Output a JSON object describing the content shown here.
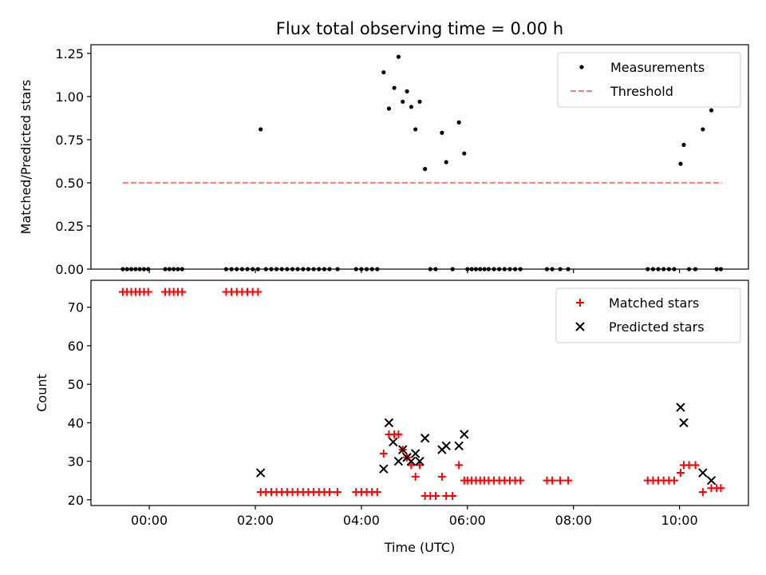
{
  "chart_data": [
    {
      "type": "scatter",
      "title": "Flux total observing time = 0.00 h",
      "ylabel": "Matched/Predicted stars",
      "xlabel": "",
      "xlim": [
        -1.1,
        11.3
      ],
      "ylim": [
        0,
        1.3
      ],
      "x_ticks": [
        0,
        2,
        4,
        6,
        8,
        10
      ],
      "x_tick_labels": [
        "00:00",
        "02:00",
        "04:00",
        "06:00",
        "08:00",
        "10:00"
      ],
      "y_ticks": [
        0,
        0.25,
        0.5,
        0.75,
        1.0,
        1.25
      ],
      "y_tick_labels": [
        "0.00",
        "0.25",
        "0.50",
        "0.75",
        "1.00",
        "1.25"
      ],
      "show_x_tick_labels": false,
      "grid": false,
      "legend_position": "top-right",
      "series": [
        {
          "name": "Measurements",
          "marker": "dot",
          "color": "#000000",
          "x": [
            -0.5,
            -0.42,
            -0.34,
            -0.26,
            -0.18,
            -0.1,
            -0.02,
            0.3,
            0.38,
            0.46,
            0.54,
            0.62,
            1.45,
            1.55,
            1.65,
            1.75,
            1.85,
            1.95,
            2.05,
            2.1,
            2.2,
            2.3,
            2.4,
            2.5,
            2.6,
            2.7,
            2.8,
            2.9,
            3.0,
            3.1,
            3.2,
            3.3,
            3.4,
            3.55,
            3.9,
            4.0,
            4.1,
            4.2,
            4.3,
            4.42,
            4.52,
            4.62,
            4.7,
            4.78,
            4.86,
            4.94,
            5.02,
            5.1,
            5.2,
            5.3,
            5.4,
            5.52,
            5.6,
            5.72,
            5.84,
            5.94,
            6.0,
            6.08,
            6.16,
            6.24,
            6.32,
            6.4,
            6.5,
            6.6,
            6.7,
            6.8,
            6.9,
            7.0,
            7.5,
            7.6,
            7.75,
            7.9,
            9.4,
            9.5,
            9.6,
            9.7,
            9.8,
            9.9,
            10.02,
            10.08,
            10.18,
            10.3,
            10.44,
            10.6,
            10.7,
            10.78
          ],
          "y": [
            0,
            0,
            0,
            0,
            0,
            0,
            0,
            0,
            0,
            0,
            0,
            0,
            0,
            0,
            0,
            0,
            0,
            0,
            0,
            0.81,
            0,
            0,
            0,
            0,
            0,
            0,
            0,
            0,
            0,
            0,
            0,
            0,
            0,
            0,
            0,
            0,
            0,
            0,
            0,
            1.14,
            0.93,
            1.05,
            1.23,
            0.97,
            1.03,
            0.94,
            0.81,
            0.97,
            0.58,
            0,
            0,
            0.79,
            0.62,
            0,
            0.85,
            0.67,
            0,
            0,
            0,
            0,
            0,
            0,
            0,
            0,
            0,
            0,
            0,
            0,
            0,
            0,
            0,
            0,
            0,
            0,
            0,
            0,
            0,
            0,
            0.61,
            0.72,
            0,
            0,
            0.81,
            0.92,
            0,
            0
          ]
        },
        {
          "name": "Threshold",
          "marker": "dashed-line",
          "color": "#ff7777",
          "x": [
            -0.5,
            10.8
          ],
          "y": [
            0.5,
            0.5
          ]
        }
      ]
    },
    {
      "type": "scatter",
      "title": "",
      "ylabel": "Count",
      "xlabel": "Time (UTC)",
      "xlim": [
        -1.1,
        11.3
      ],
      "ylim": [
        18.5,
        77
      ],
      "x_ticks": [
        0,
        2,
        4,
        6,
        8,
        10
      ],
      "x_tick_labels": [
        "00:00",
        "02:00",
        "04:00",
        "06:00",
        "08:00",
        "10:00"
      ],
      "y_ticks": [
        20,
        30,
        40,
        50,
        60,
        70
      ],
      "y_tick_labels": [
        "20",
        "30",
        "40",
        "50",
        "60",
        "70"
      ],
      "show_x_tick_labels": true,
      "grid": false,
      "legend_position": "top-right",
      "series": [
        {
          "name": "Matched stars",
          "marker": "plus",
          "color": "#ff0000",
          "x": [
            -0.5,
            -0.42,
            -0.34,
            -0.26,
            -0.18,
            -0.1,
            -0.02,
            0.3,
            0.38,
            0.46,
            0.54,
            0.62,
            1.45,
            1.55,
            1.65,
            1.75,
            1.85,
            1.95,
            2.05,
            2.1,
            2.2,
            2.3,
            2.4,
            2.5,
            2.6,
            2.7,
            2.8,
            2.9,
            3.0,
            3.1,
            3.2,
            3.3,
            3.4,
            3.55,
            3.9,
            4.0,
            4.1,
            4.2,
            4.3,
            4.42,
            4.52,
            4.62,
            4.7,
            4.78,
            4.86,
            4.94,
            5.02,
            5.1,
            5.2,
            5.3,
            5.4,
            5.52,
            5.6,
            5.72,
            5.84,
            5.94,
            6.0,
            6.08,
            6.16,
            6.24,
            6.32,
            6.4,
            6.5,
            6.6,
            6.7,
            6.8,
            6.9,
            7.0,
            7.5,
            7.6,
            7.75,
            7.9,
            9.4,
            9.5,
            9.6,
            9.7,
            9.8,
            9.9,
            10.02,
            10.08,
            10.18,
            10.3,
            10.44,
            10.6,
            10.7,
            10.78
          ],
          "y": [
            74,
            74,
            74,
            74,
            74,
            74,
            74,
            74,
            74,
            74,
            74,
            74,
            74,
            74,
            74,
            74,
            74,
            74,
            74,
            22,
            22,
            22,
            22,
            22,
            22,
            22,
            22,
            22,
            22,
            22,
            22,
            22,
            22,
            22,
            22,
            22,
            22,
            22,
            22,
            32,
            37,
            37,
            37,
            33,
            31,
            29,
            26,
            29,
            21,
            21,
            21,
            26,
            21,
            21,
            29,
            25,
            25,
            25,
            25,
            25,
            25,
            25,
            25,
            25,
            25,
            25,
            25,
            25,
            25,
            25,
            25,
            25,
            25,
            25,
            25,
            25,
            25,
            25,
            27,
            29,
            29,
            29,
            22,
            23,
            23,
            23
          ]
        },
        {
          "name": "Predicted stars",
          "marker": "x",
          "color": "#000000",
          "x": [
            2.1,
            4.42,
            4.52,
            4.6,
            4.7,
            4.78,
            4.86,
            4.94,
            5.02,
            5.1,
            5.2,
            5.52,
            5.6,
            5.84,
            5.94,
            10.02,
            10.08,
            10.44,
            10.6
          ],
          "y": [
            27,
            28,
            40,
            35,
            30,
            33,
            31,
            30,
            32,
            30,
            36,
            33,
            34,
            34,
            37,
            44,
            40,
            27,
            25
          ]
        }
      ]
    }
  ]
}
